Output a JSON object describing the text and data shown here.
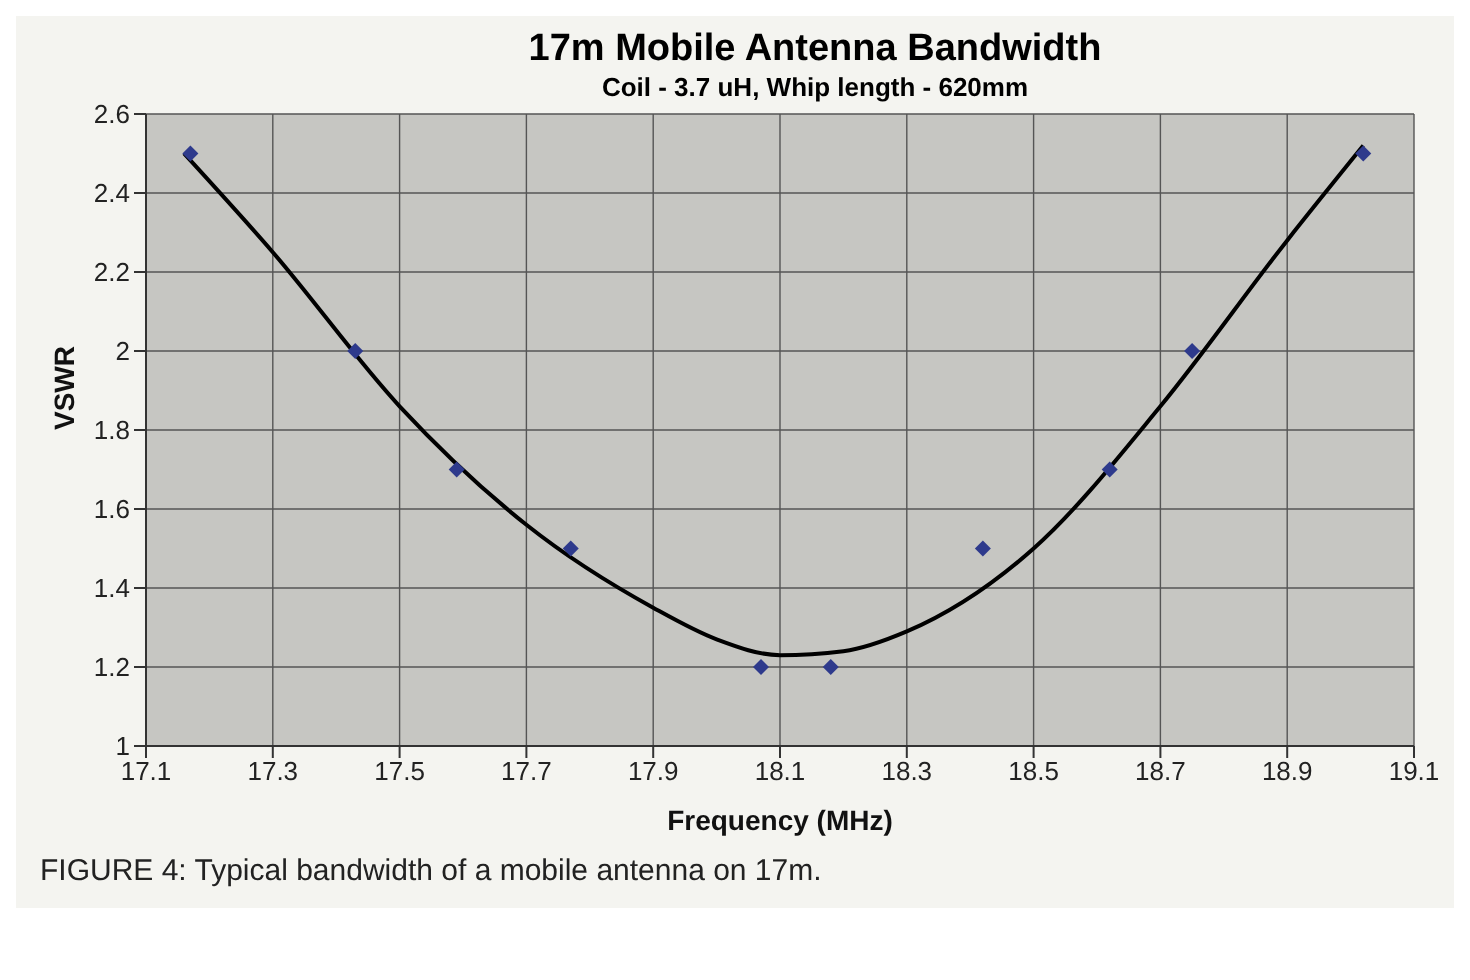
{
  "chart_data": {
    "type": "scatter",
    "title": "17m Mobile Antenna Bandwidth",
    "subtitle": "Coil - 3.7 uH, Whip length - 620mm",
    "xlabel": "Frequency (MHz)",
    "ylabel": "VSWR",
    "series": [
      {
        "color": "#2e3a8c",
        "marker": "diamond",
        "x": [
          17.17,
          17.43,
          17.59,
          17.77,
          18.07,
          18.18,
          18.42,
          18.62,
          18.75,
          19.02
        ],
        "values": [
          2.5,
          2.0,
          1.7,
          1.5,
          1.2,
          1.2,
          1.5,
          1.7,
          2.0,
          2.5
        ]
      },
      {
        "type": "line",
        "color": "#000000",
        "marker": "none",
        "line_style": "solid",
        "x": [
          17.16,
          17.3,
          17.5,
          17.7,
          17.9,
          18.0,
          18.1,
          18.2,
          18.3,
          18.5,
          18.7,
          18.9,
          19.02
        ],
        "values": [
          2.5,
          2.25,
          1.86,
          1.56,
          1.35,
          1.27,
          1.23,
          1.24,
          1.29,
          1.5,
          1.86,
          2.28,
          2.52
        ]
      }
    ],
    "xlim": [
      17.1,
      19.1
    ],
    "xticks": [
      17.1,
      17.3,
      17.5,
      17.7,
      17.9,
      18.1,
      18.3,
      18.5,
      18.7,
      18.9,
      19.1
    ],
    "ylim": [
      1,
      2.6
    ],
    "yticks": [
      1,
      1.2,
      1.4,
      1.6,
      1.8,
      2,
      2.2,
      2.4,
      2.6
    ],
    "grid": true,
    "legend": false,
    "annotations": [
      "FIGURE 4: Typical bandwidth of a mobile antenna on 17m."
    ]
  }
}
